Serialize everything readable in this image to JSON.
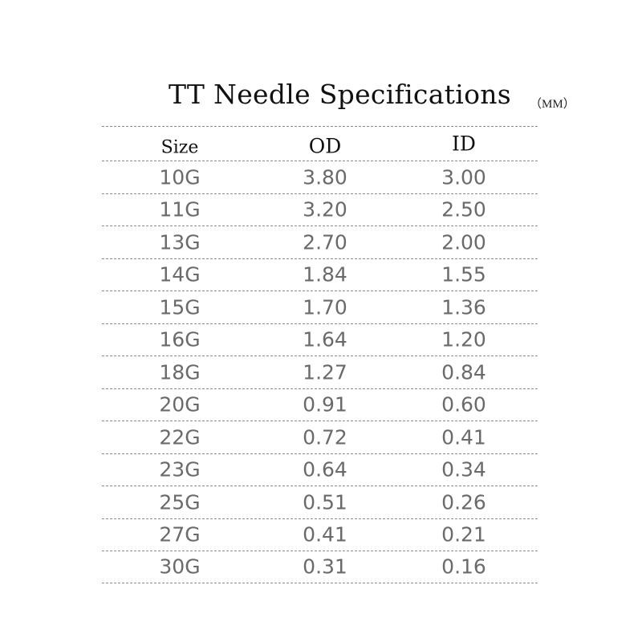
{
  "title": "TT Needle Specifications",
  "unit": "（MM）",
  "columns": [
    "Size",
    "OD",
    "ID"
  ],
  "rows": [
    {
      "size": "10G",
      "od": "3.80",
      "id": "3.00"
    },
    {
      "size": "11G",
      "od": "3.20",
      "id": "2.50"
    },
    {
      "size": "13G",
      "od": "2.70",
      "id": "2.00"
    },
    {
      "size": "14G",
      "od": "1.84",
      "id": "1.55"
    },
    {
      "size": "15G",
      "od": "1.70",
      "id": "1.36"
    },
    {
      "size": "16G",
      "od": "1.64",
      "id": "1.20"
    },
    {
      "size": "18G",
      "od": "1.27",
      "id": "0.84"
    },
    {
      "size": "20G",
      "od": "0.91",
      "id": "0.60"
    },
    {
      "size": "22G",
      "od": "0.72",
      "id": "0.41"
    },
    {
      "size": "23G",
      "od": "0.64",
      "id": "0.34"
    },
    {
      "size": "25G",
      "od": "0.51",
      "id": "0.26"
    },
    {
      "size": "27G",
      "od": "0.41",
      "id": "0.21"
    },
    {
      "size": "30G",
      "od": "0.31",
      "id": "0.16"
    }
  ]
}
